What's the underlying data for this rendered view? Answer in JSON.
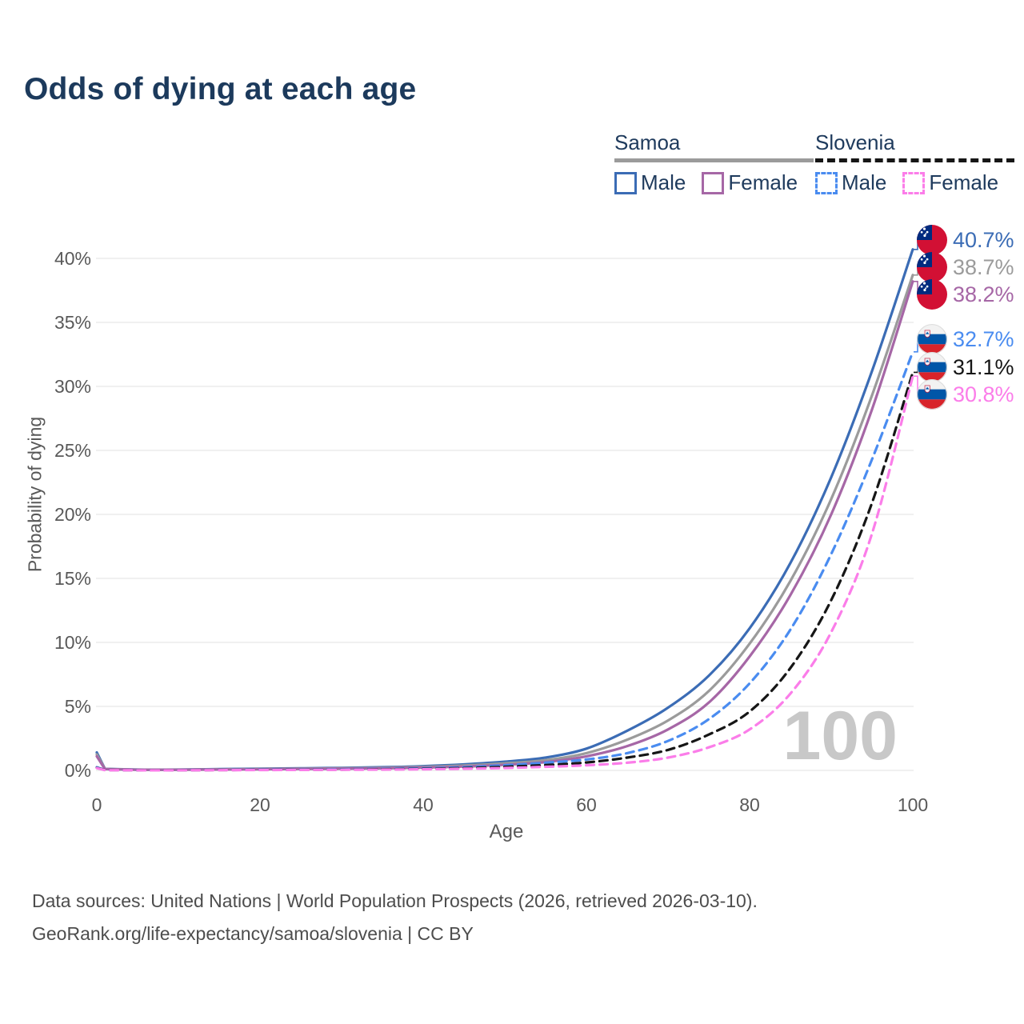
{
  "title": "Odds of dying at each age",
  "legend": {
    "groups": [
      {
        "name": "Samoa",
        "line_style": "solid",
        "line_color": "#9b9b9b",
        "items": [
          {
            "label": "Male",
            "color": "#3b6cb5",
            "dashed": false
          },
          {
            "label": "Female",
            "color": "#a667a6",
            "dashed": false
          }
        ]
      },
      {
        "name": "Slovenia",
        "line_style": "dashed",
        "line_color": "#161616",
        "items": [
          {
            "label": "Male",
            "color": "#4a8cf0",
            "dashed": true
          },
          {
            "label": "Female",
            "color": "#fb7de9",
            "dashed": true
          }
        ]
      }
    ]
  },
  "chart_data": {
    "type": "line",
    "title": "Odds of dying at each age",
    "xlabel": "Age",
    "ylabel": "Probability of dying",
    "x_ticks": [
      0,
      20,
      40,
      60,
      80,
      100
    ],
    "y_ticks": [
      0,
      5,
      10,
      15,
      20,
      25,
      30,
      35,
      40
    ],
    "y_tick_suffix": "%",
    "xlim": [
      0,
      100
    ],
    "ylim": [
      0,
      42
    ],
    "grid": true,
    "watermark": "100",
    "x": [
      0,
      1,
      5,
      10,
      15,
      20,
      25,
      30,
      35,
      40,
      45,
      50,
      55,
      60,
      65,
      70,
      75,
      80,
      85,
      90,
      95,
      100
    ],
    "series": [
      {
        "name": "Samoa Male",
        "country": "Samoa",
        "sex": "Male",
        "flag": "samoa",
        "color": "#3b6cb5",
        "dashed": false,
        "end_label": "40.7%",
        "values": [
          1.4,
          0.12,
          0.06,
          0.06,
          0.1,
          0.13,
          0.16,
          0.2,
          0.25,
          0.33,
          0.47,
          0.68,
          1.0,
          1.7,
          3.1,
          4.9,
          7.4,
          11.1,
          16.2,
          22.9,
          31.2,
          40.7
        ]
      },
      {
        "name": "Samoa Both sexes",
        "country": "Samoa",
        "sex": "Both",
        "flag": "samoa",
        "color": "#9b9b9b",
        "dashed": false,
        "end_label": "38.7%",
        "values": [
          1.25,
          0.11,
          0.05,
          0.05,
          0.08,
          0.11,
          0.13,
          0.16,
          0.2,
          0.27,
          0.38,
          0.55,
          0.8,
          1.35,
          2.4,
          3.9,
          6.2,
          9.9,
          14.8,
          21.2,
          29.3,
          38.7
        ]
      },
      {
        "name": "Samoa Female",
        "country": "Samoa",
        "sex": "Female",
        "flag": "samoa",
        "color": "#a667a6",
        "dashed": false,
        "end_label": "38.2%",
        "values": [
          1.1,
          0.1,
          0.05,
          0.05,
          0.07,
          0.09,
          0.11,
          0.13,
          0.16,
          0.22,
          0.3,
          0.44,
          0.65,
          1.1,
          1.9,
          3.2,
          5.3,
          8.9,
          13.7,
          20.0,
          28.2,
          38.2
        ]
      },
      {
        "name": "Slovenia Male",
        "country": "Slovenia",
        "sex": "Male",
        "flag": "slovenia",
        "color": "#4a8cf0",
        "dashed": true,
        "end_label": "32.7%",
        "values": [
          0.25,
          0.03,
          0.02,
          0.02,
          0.04,
          0.06,
          0.07,
          0.09,
          0.12,
          0.17,
          0.25,
          0.4,
          0.6,
          0.85,
          1.35,
          2.3,
          4.0,
          6.8,
          11.0,
          16.9,
          24.3,
          32.7
        ]
      },
      {
        "name": "Slovenia Both sexes",
        "country": "Slovenia",
        "sex": "Both",
        "flag": "slovenia",
        "color": "#161616",
        "dashed": true,
        "end_label": "31.1%",
        "values": [
          0.2,
          0.03,
          0.02,
          0.02,
          0.03,
          0.04,
          0.05,
          0.06,
          0.09,
          0.12,
          0.18,
          0.28,
          0.42,
          0.62,
          1.0,
          1.6,
          2.8,
          4.6,
          8.0,
          13.3,
          20.9,
          31.1
        ]
      },
      {
        "name": "Slovenia Female",
        "country": "Slovenia",
        "sex": "Female",
        "flag": "slovenia",
        "color": "#fb7de9",
        "dashed": true,
        "end_label": "30.8%",
        "values": [
          0.18,
          0.02,
          0.01,
          0.01,
          0.02,
          0.03,
          0.04,
          0.05,
          0.06,
          0.09,
          0.13,
          0.19,
          0.28,
          0.4,
          0.6,
          1.0,
          1.8,
          3.2,
          6.0,
          10.8,
          18.5,
          30.8
        ]
      }
    ]
  },
  "footer": {
    "line1": "Data sources: United Nations | World Population Prospects (2026, retrieved 2026-03-10).",
    "line2": "GeoRank.org/life-expectancy/samoa/slovenia | CC BY"
  }
}
